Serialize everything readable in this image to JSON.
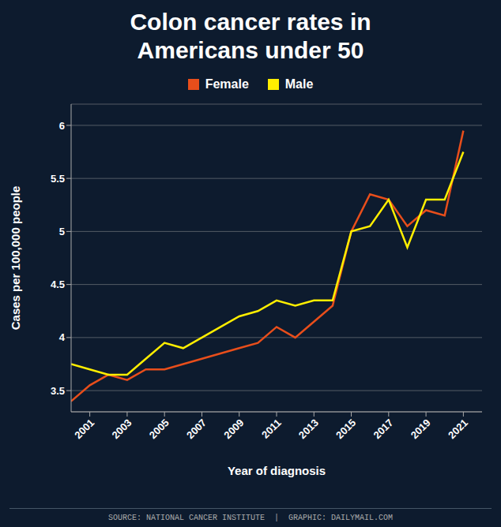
{
  "chart_data": {
    "type": "line",
    "title": "Colon cancer rates in\nAmericans under 50",
    "x_label": "Year of diagnosis",
    "y_label": "Cases per 100,000 people",
    "annotations": [
      "SOURCE: NATIONAL CANCER INSTITUTE  |  GRAPHIC: DAILYMAIL.COM"
    ],
    "x": [
      2000,
      2001,
      2002,
      2003,
      2004,
      2005,
      2006,
      2007,
      2008,
      2009,
      2010,
      2011,
      2012,
      2013,
      2014,
      2015,
      2016,
      2017,
      2018,
      2019,
      2020,
      2021
    ],
    "series": [
      {
        "name": "Female",
        "color": "#e84e1b",
        "values": [
          3.4,
          3.55,
          3.65,
          3.6,
          3.7,
          3.7,
          3.75,
          3.8,
          3.85,
          3.9,
          3.95,
          4.1,
          4.0,
          4.15,
          4.3,
          5.0,
          5.35,
          5.3,
          5.05,
          5.2,
          5.15,
          5.95
        ]
      },
      {
        "name": "Male",
        "color": "#ffee00",
        "values": [
          3.75,
          3.7,
          3.65,
          3.65,
          3.8,
          3.95,
          3.9,
          4.0,
          4.1,
          4.2,
          4.25,
          4.35,
          4.3,
          4.35,
          4.35,
          5.0,
          5.05,
          5.3,
          4.85,
          5.3,
          5.3,
          5.75
        ]
      }
    ],
    "xlim": [
      2000,
      2022
    ],
    "xticks": [
      2001,
      2003,
      2005,
      2007,
      2009,
      2011,
      2013,
      2015,
      2017,
      2019,
      2021
    ],
    "ylim": [
      3.3,
      6.2
    ],
    "yticks": [
      3.5,
      4.0,
      4.5,
      5.0,
      5.5,
      6.0
    ],
    "grid": true,
    "legend": "top"
  }
}
